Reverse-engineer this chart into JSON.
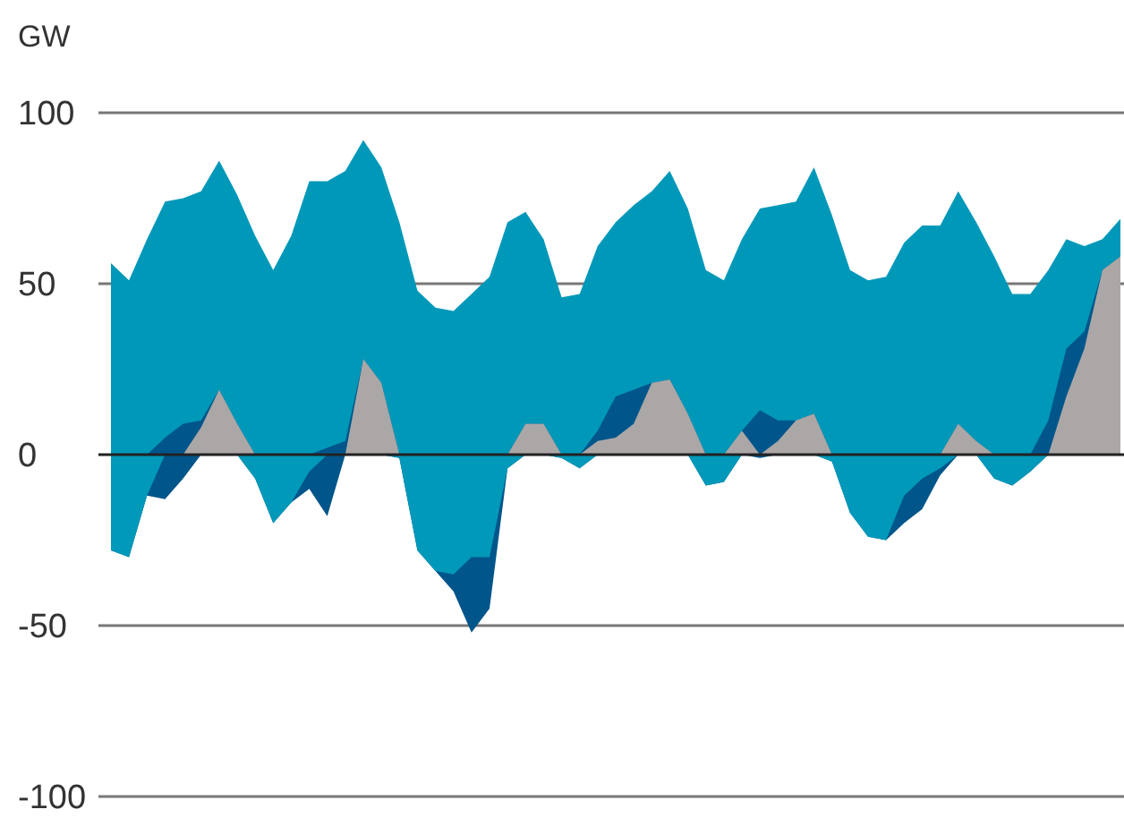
{
  "chart_data": {
    "type": "area",
    "ylabel": "GW",
    "categories": [
      null,
      null,
      null,
      null,
      null,
      null,
      null,
      null,
      null,
      null,
      null,
      null,
      null,
      null,
      null,
      null,
      null,
      null,
      null,
      null,
      null,
      null,
      null,
      null,
      null,
      null,
      null,
      null,
      null,
      null,
      null,
      null,
      null,
      null,
      null,
      null,
      null,
      null,
      null,
      null,
      null,
      null,
      null,
      null,
      null,
      null,
      null,
      null,
      null,
      null,
      null,
      null,
      null,
      null,
      null,
      null,
      null
    ],
    "ylim": [
      -100,
      100
    ],
    "yticks": [
      -100,
      -50,
      0,
      50,
      100
    ],
    "grid": "y",
    "tick_labels": "y",
    "series": [
      {
        "color": "#0098b9",
        "values": [
          56,
          51,
          63,
          74,
          75,
          77,
          86,
          76,
          64,
          54,
          64,
          80,
          80,
          83,
          92,
          84,
          68,
          48,
          43,
          42,
          47,
          52,
          68,
          71,
          63,
          46,
          47,
          61,
          68,
          73,
          77,
          83,
          72,
          54,
          51,
          63,
          72,
          73,
          74,
          84,
          70,
          54,
          51,
          52,
          62,
          67,
          67,
          77,
          68,
          58,
          47,
          47,
          54,
          63,
          61,
          63,
          69
        ]
      },
      {
        "color": "#00558a",
        "values": [
          -28,
          -30,
          -12,
          -13,
          -7,
          0,
          0,
          0,
          -7,
          -20,
          -14,
          -10,
          -18,
          0,
          0,
          0,
          -1,
          -28,
          -34,
          -40,
          -52,
          -45,
          -4,
          0,
          0,
          -1,
          -4,
          0,
          0,
          0,
          0,
          0,
          0,
          -9,
          -8,
          0,
          -1,
          0,
          0,
          0,
          -2,
          -17,
          -24,
          -25,
          -20,
          -16,
          -6,
          0,
          0,
          -7,
          -9,
          -5,
          0,
          0,
          0,
          0,
          0
        ]
      },
      {
        "color": "#0099ba",
        "values": [
          -28,
          -30,
          -12,
          0,
          0,
          0,
          0,
          0,
          -7,
          -20,
          -14,
          -5,
          0,
          0,
          0,
          0,
          -1,
          -28,
          -34,
          -35,
          -30,
          -30,
          -4,
          0,
          0,
          -1,
          -4,
          0,
          0,
          0,
          0,
          0,
          0,
          -9,
          -8,
          0,
          0,
          0,
          0,
          0,
          -2,
          -17,
          -24,
          -25,
          -12,
          -7,
          -4,
          0,
          0,
          -7,
          -9,
          -5,
          0,
          0,
          0,
          0,
          0
        ]
      },
      {
        "color": "#00568b",
        "values": [
          0,
          0,
          0,
          5,
          9,
          10,
          19,
          9,
          0,
          0,
          0,
          0,
          2,
          4,
          28,
          21,
          0,
          0,
          0,
          0,
          0,
          0,
          0,
          9,
          9,
          0,
          0,
          7,
          17,
          19,
          21,
          22,
          12,
          0,
          0,
          7,
          13,
          10,
          10,
          12,
          0,
          0,
          0,
          0,
          0,
          0,
          0,
          9,
          4,
          0,
          0,
          0,
          10,
          31,
          36,
          54,
          58
        ]
      },
      {
        "color": "#aba7a7",
        "values": [
          null,
          null,
          null,
          null,
          0,
          8,
          19,
          9,
          0,
          null,
          null,
          null,
          null,
          0,
          28,
          21,
          0,
          null,
          null,
          null,
          null,
          null,
          0,
          9,
          9,
          0,
          0,
          4,
          5,
          9,
          21,
          22,
          12,
          0,
          0,
          7,
          0,
          4,
          10,
          12,
          0,
          null,
          null,
          null,
          null,
          null,
          0,
          9,
          4,
          0,
          null,
          null,
          0,
          17,
          31,
          54,
          58
        ]
      }
    ]
  }
}
